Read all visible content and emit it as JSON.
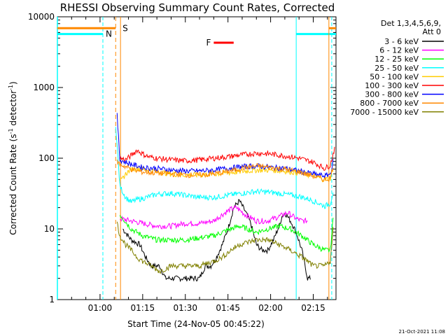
{
  "chart_data": {
    "type": "line",
    "title": "RHESSI Observing Summary Count Rates, Corrected",
    "xlabel": "Start Time (24-Nov-05 00:45:22)",
    "ylabel": "Corrected Count Rate (s⁻¹ detector⁻¹)",
    "ylabel_main": "Corrected Count Rate (s",
    "ylabel_sup1": "-1",
    "ylabel_mid": " detector",
    "ylabel_sup2": "-1",
    "ylabel_end": ")",
    "yscale": "log",
    "ylim": [
      1,
      10000
    ],
    "y_ticks": [
      {
        "value": 1,
        "label": "1"
      },
      {
        "value": 10,
        "label": "10"
      },
      {
        "value": 100,
        "label": "100"
      },
      {
        "value": 1000,
        "label": "1000"
      },
      {
        "value": 10000,
        "label": "10000"
      }
    ],
    "x_range_minutes": [
      0,
      98
    ],
    "x_ticks": [
      {
        "minute": 15,
        "label": "01:00"
      },
      {
        "minute": 30,
        "label": "01:15"
      },
      {
        "minute": 45,
        "label": "01:30"
      },
      {
        "minute": 60,
        "label": "01:45"
      },
      {
        "minute": 75,
        "label": "02:00"
      },
      {
        "minute": 90,
        "label": "02:15"
      }
    ],
    "legend_header": [
      "Det 1,3,4,5,6,9,",
      "Att 0"
    ],
    "series": [
      {
        "name": "3 - 6 keV",
        "color": "#000000",
        "minutes": [
          23,
          26,
          29,
          31,
          33,
          36,
          38,
          40,
          42,
          44,
          46,
          48,
          50,
          52,
          54,
          56,
          58,
          60,
          62,
          64,
          66,
          68,
          70,
          72,
          74,
          76,
          78,
          79,
          80,
          82,
          84,
          86,
          88,
          89
        ],
        "values": [
          10,
          7,
          6,
          4,
          3,
          3,
          2,
          2,
          2,
          2,
          2,
          2,
          2,
          3,
          3,
          4,
          6,
          10,
          20,
          25,
          18,
          12,
          6,
          5,
          5,
          7,
          11,
          15,
          17,
          13,
          9,
          5,
          2,
          2
        ]
      },
      {
        "name": "6 - 12 keV",
        "color": "#ff00ff",
        "minutes": [
          22,
          26,
          30,
          35,
          40,
          45,
          50,
          55,
          58,
          61,
          63,
          66,
          70,
          74,
          78,
          81,
          84,
          86,
          88
        ],
        "values": [
          14,
          13,
          12,
          11,
          11,
          12,
          12,
          13,
          16,
          19,
          20,
          16,
          13,
          13,
          15,
          17,
          14,
          13,
          13
        ]
      },
      {
        "name": "12 - 25 keV",
        "color": "#00ff00",
        "minutes": [
          22,
          26,
          30,
          35,
          40,
          45,
          50,
          55,
          58,
          61,
          64,
          67,
          70,
          74,
          78,
          82,
          86,
          90,
          94,
          96,
          97
        ],
        "values": [
          16,
          10,
          8,
          7,
          7,
          7,
          7.5,
          8,
          9,
          10,
          11,
          10,
          9,
          10,
          11,
          10,
          8,
          6,
          5,
          5,
          14
        ]
      },
      {
        "name": "25 - 50 keV",
        "color": "#00ffff",
        "minutes": [
          20.5,
          22,
          24,
          26,
          28,
          30,
          35,
          40,
          45,
          50,
          55,
          60,
          65,
          70,
          75,
          80,
          85,
          89,
          92,
          94,
          96,
          97
        ],
        "values": [
          300,
          40,
          28,
          24,
          26,
          27,
          31,
          32,
          30,
          28,
          28,
          30,
          32,
          34,
          33,
          31,
          29,
          26,
          23,
          21,
          23,
          34
        ]
      },
      {
        "name": "50 - 100 keV",
        "color": "#ffcc00",
        "minutes": [
          22,
          24,
          26,
          28,
          30,
          35,
          40,
          45,
          50,
          55,
          60,
          65,
          70,
          75,
          80,
          85,
          90,
          94,
          96,
          97
        ],
        "values": [
          45,
          60,
          70,
          72,
          70,
          65,
          60,
          58,
          58,
          60,
          62,
          65,
          68,
          68,
          66,
          62,
          56,
          50,
          52,
          70
        ]
      },
      {
        "name": "100 - 300 keV",
        "color": "#ff0000",
        "minutes": [
          22,
          24,
          26,
          28,
          30,
          32,
          35,
          40,
          45,
          50,
          55,
          60,
          65,
          70,
          75,
          80,
          85,
          90,
          94,
          96,
          97.5
        ],
        "values": [
          100,
          95,
          110,
          130,
          115,
          105,
          100,
          95,
          92,
          95,
          100,
          105,
          112,
          118,
          115,
          108,
          100,
          88,
          72,
          80,
          140
        ]
      },
      {
        "name": "300 - 800 keV",
        "color": "#0000ff",
        "minutes": [
          21,
          22,
          24,
          26,
          28,
          30,
          35,
          40,
          45,
          50,
          55,
          60,
          65,
          70,
          75,
          80,
          85,
          90,
          94,
          96,
          97
        ],
        "values": [
          400,
          95,
          88,
          82,
          78,
          74,
          72,
          68,
          66,
          66,
          68,
          72,
          76,
          78,
          74,
          72,
          66,
          60,
          56,
          60,
          90
        ]
      },
      {
        "name": "800 - 7000 keV",
        "color": "#ff8800",
        "minutes": [
          21,
          22,
          24,
          26,
          28,
          30,
          35,
          40,
          45,
          50,
          55,
          60,
          65,
          70,
          75,
          80,
          85,
          90,
          94,
          96,
          97
        ],
        "values": [
          90,
          82,
          76,
          70,
          66,
          64,
          62,
          60,
          58,
          58,
          60,
          65,
          72,
          78,
          74,
          70,
          64,
          56,
          50,
          52,
          80
        ]
      },
      {
        "name": "7000 - 15000 keV",
        "color": "#808000",
        "minutes": [
          21,
          22,
          24,
          26,
          28,
          30,
          33,
          36,
          40,
          45,
          50,
          55,
          58,
          61,
          64,
          67,
          70,
          74,
          78,
          82,
          86,
          88,
          90,
          94,
          96,
          97
        ],
        "values": [
          12,
          8,
          6,
          5,
          4,
          3.5,
          3,
          2.5,
          3,
          3,
          3,
          3.5,
          4,
          5,
          6,
          6.5,
          7,
          7,
          6,
          5,
          4,
          3.5,
          3,
          3,
          3.5,
          10
        ]
      }
    ],
    "flags": [
      {
        "label": "S",
        "color": "#ff8800"
      },
      {
        "label": "N",
        "color": "#00ffff"
      },
      {
        "label": "F",
        "color": "#ff0000"
      }
    ],
    "timestamp": "21-Oct-2021 11:08"
  }
}
